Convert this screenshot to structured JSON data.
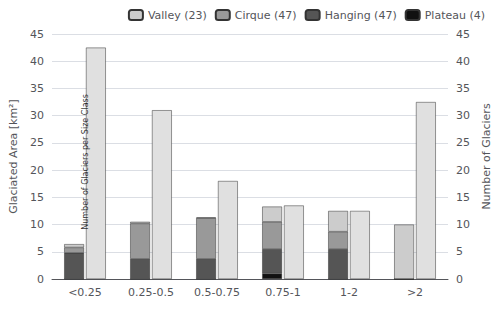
{
  "chart_data": {
    "type": "bar",
    "categories": [
      "<0.25",
      "0.25-0.5",
      "0.5-0.75",
      "0.75-1",
      "1-2",
      ">2"
    ],
    "series": [
      {
        "name": "Plateau (4)",
        "color": "#111111",
        "values": [
          0.0,
          0.0,
          0.0,
          1.0,
          0.0,
          0.0
        ]
      },
      {
        "name": "Hanging (47)",
        "color": "#555555",
        "values": [
          4.8,
          3.7,
          3.7,
          4.5,
          5.5,
          0.0
        ]
      },
      {
        "name": "Cirque (47)",
        "color": "#999999",
        "values": [
          1.0,
          6.5,
          7.5,
          5.0,
          3.2,
          0.0
        ]
      },
      {
        "name": "Valley (23)",
        "color": "#cccccc",
        "values": [
          0.6,
          0.3,
          0.1,
          2.8,
          3.8,
          10.0
        ]
      },
      {
        "name": "Number of Glaciers",
        "color": "#e0e0e0",
        "values": [
          42.5,
          31.0,
          18.0,
          13.5,
          12.5,
          32.5
        ],
        "axis": "y2"
      }
    ],
    "stacked": true,
    "ylabel": "Glaciated Area [km²]",
    "y2label": "Number of Glaciers",
    "ylim": [
      0,
      45
    ],
    "yticks": [
      0,
      5,
      10,
      15,
      20,
      25,
      30,
      35,
      40,
      45
    ],
    "y2lim": [
      0,
      45
    ],
    "y2ticks": [
      0,
      5,
      10,
      15,
      20,
      25,
      30,
      35,
      40,
      45
    ],
    "grid": true,
    "legend": "upper right",
    "annotations": [
      {
        "text": "Number of Glaciers per Size Class",
        "x": "<0.25",
        "y": 21.5
      }
    ]
  }
}
